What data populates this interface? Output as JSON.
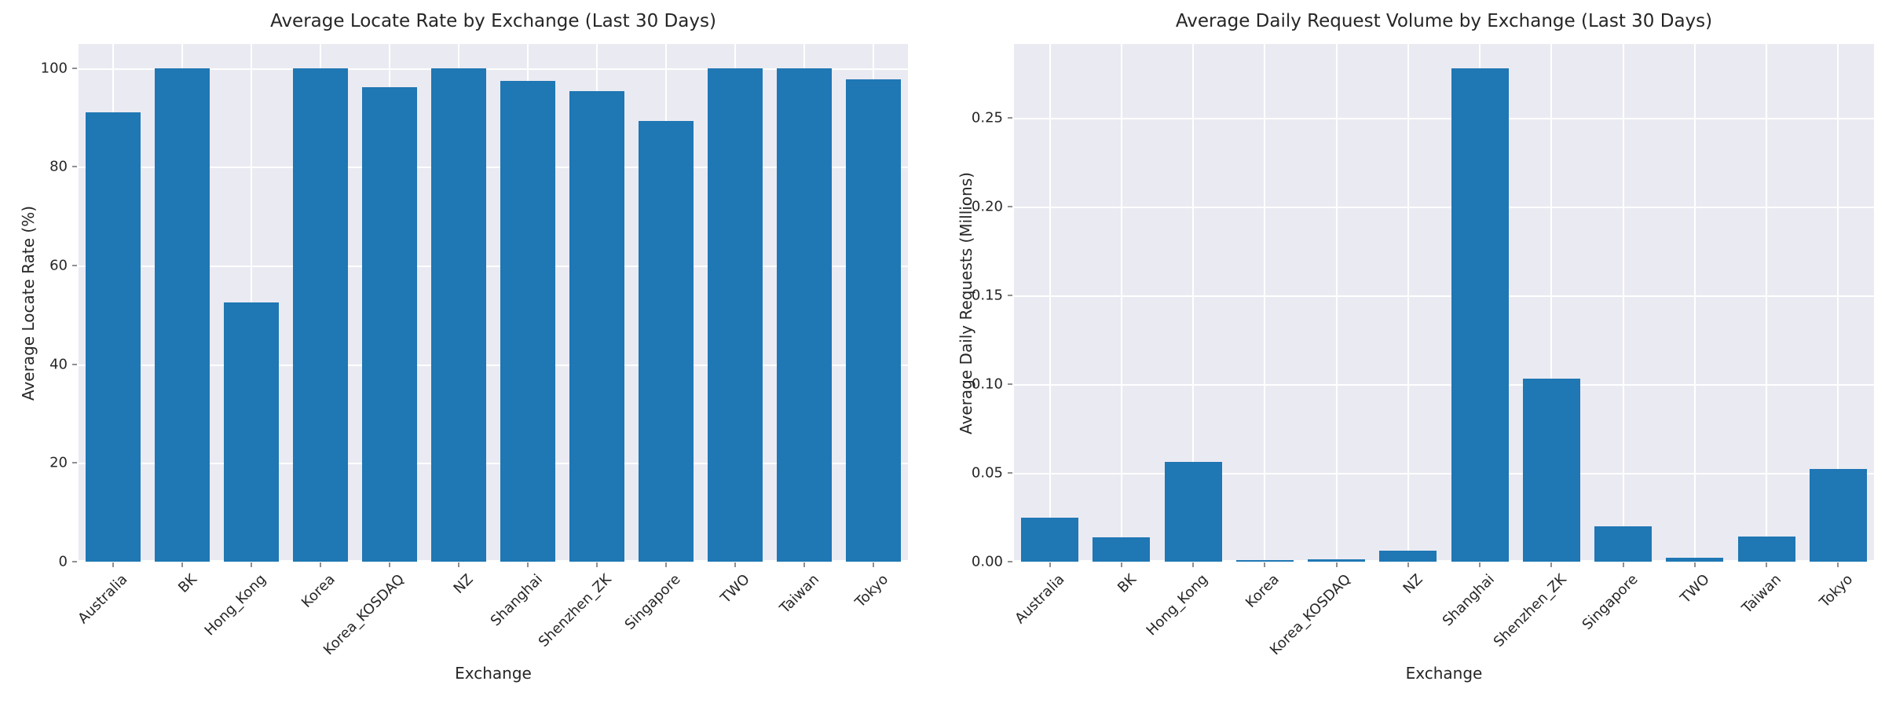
{
  "theme": {
    "bar_color": "#1f77b4",
    "plot_background": "#eaeaf2",
    "grid_color": "#ffffff",
    "text_color": "#262626",
    "figure_background": "#ffffff"
  },
  "chart_data": [
    {
      "type": "bar",
      "title": "Average Locate Rate by Exchange (Last 30 Days)",
      "xlabel": "Exchange",
      "ylabel": "Average Locate Rate (%)",
      "categories": [
        "Australia",
        "BK",
        "Hong_Kong",
        "Korea",
        "Korea_KOSDAQ",
        "NZ",
        "Shanghai",
        "Shenzhen_ZK",
        "Singapore",
        "TWO",
        "Taiwan",
        "Tokyo"
      ],
      "values": [
        91.1,
        100.0,
        52.6,
        100.0,
        96.2,
        100.0,
        97.4,
        95.4,
        89.3,
        100.0,
        100.0,
        97.8
      ],
      "ytick_values": [
        0,
        20,
        40,
        60,
        80,
        100
      ],
      "ytick_labels": [
        "0",
        "20",
        "40",
        "60",
        "80",
        "100"
      ],
      "ylim": [
        0,
        104.9
      ],
      "grid": true,
      "legend": null,
      "tick_rotation_deg": 45
    },
    {
      "type": "bar",
      "title": "Average Daily Request Volume by Exchange (Last 30 Days)",
      "xlabel": "Exchange",
      "ylabel": "Average Daily Requests (Millions)",
      "categories": [
        "Australia",
        "BK",
        "Hong_Kong",
        "Korea",
        "Korea_KOSDAQ",
        "NZ",
        "Shanghai",
        "Shenzhen_ZK",
        "Singapore",
        "TWO",
        "Taiwan",
        "Tokyo"
      ],
      "values": [
        0.025,
        0.0136,
        0.056,
        0.0008,
        0.0012,
        0.006,
        0.278,
        0.103,
        0.02,
        0.0024,
        0.0141,
        0.052
      ],
      "ytick_values": [
        0,
        0.05,
        0.1,
        0.15,
        0.2,
        0.25
      ],
      "ytick_labels": [
        "0.00",
        "0.05",
        "0.10",
        "0.15",
        "0.20",
        "0.25"
      ],
      "ylim": [
        0,
        0.2916
      ],
      "grid": true,
      "legend": null,
      "tick_rotation_deg": 45
    }
  ]
}
